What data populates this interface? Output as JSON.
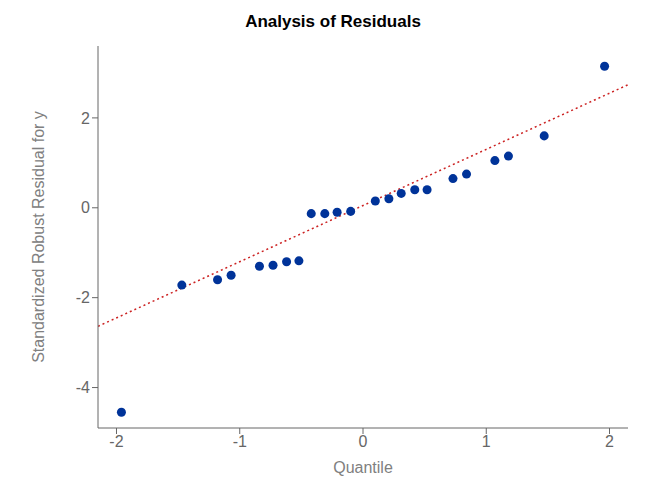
{
  "chart_data": {
    "type": "scatter",
    "title": "Analysis of Residuals",
    "xlabel": "Quantile",
    "ylabel": "Standardized Robust Residual for y",
    "xlim": [
      -2.15,
      2.15
    ],
    "ylim": [
      -4.9,
      3.6
    ],
    "xticks": [
      -2,
      -1,
      0,
      1,
      2
    ],
    "yticks": [
      -4,
      -2,
      0,
      2
    ],
    "grid": false,
    "series": [
      {
        "type": "scatter",
        "marker": "circle",
        "color": "#003399",
        "x": [
          -1.96,
          -1.47,
          -1.18,
          -1.07,
          -0.84,
          -0.73,
          -0.62,
          -0.52,
          -0.42,
          -0.31,
          -0.21,
          -0.1,
          0.1,
          0.21,
          0.31,
          0.42,
          0.52,
          0.73,
          0.84,
          1.07,
          1.18,
          1.47,
          1.96
        ],
        "values": [
          -4.55,
          -1.72,
          -1.6,
          -1.5,
          -1.3,
          -1.28,
          -1.2,
          -1.18,
          -0.13,
          -0.13,
          -0.1,
          -0.08,
          0.15,
          0.2,
          0.32,
          0.4,
          0.4,
          0.65,
          0.75,
          1.05,
          1.15,
          1.6,
          3.15
        ]
      },
      {
        "type": "line",
        "line_style": "dotted",
        "color": "#CC2222",
        "x": [
          -2.15,
          2.15
        ],
        "values": [
          -2.6375,
          2.7375
        ]
      }
    ]
  }
}
